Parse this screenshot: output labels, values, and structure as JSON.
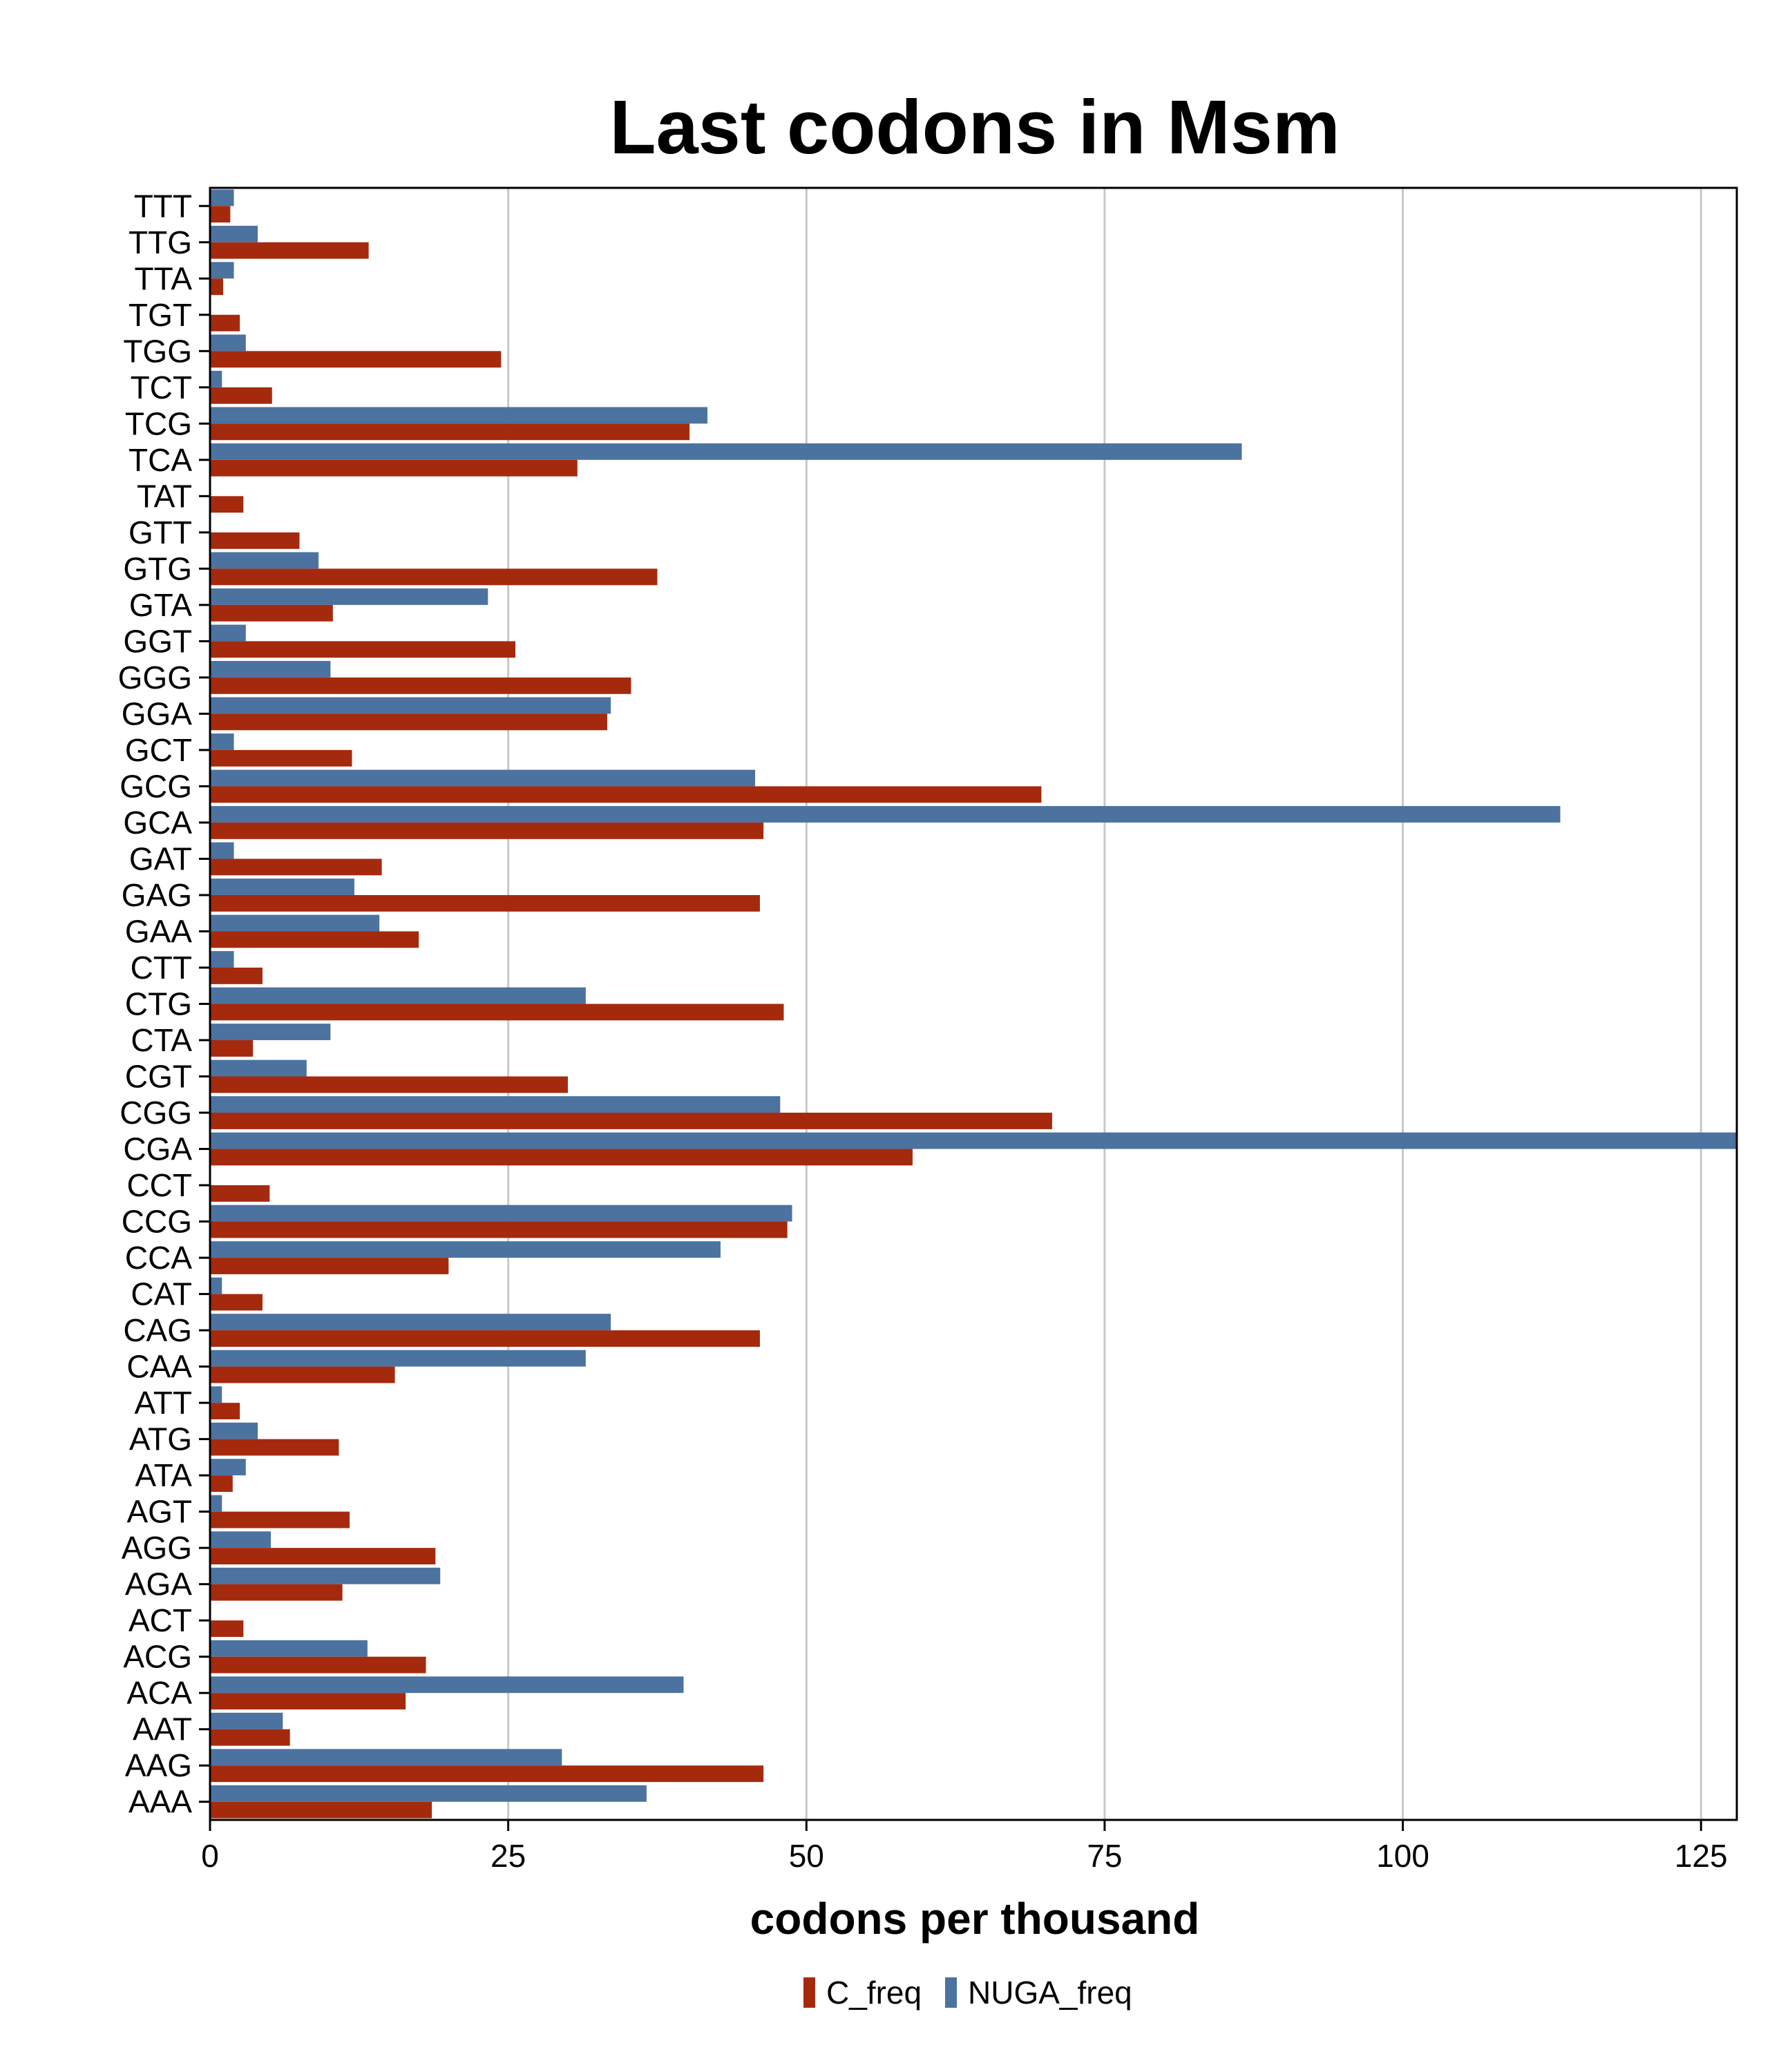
{
  "chart_data": {
    "type": "bar",
    "orientation": "horizontal",
    "title": "Last codons in Msm",
    "xlabel": "codons per thousand",
    "ylabel": "",
    "xlim": [
      0,
      128
    ],
    "xticks": [
      "0",
      "25",
      "50",
      "75",
      "100",
      "125"
    ],
    "xtick_values": [
      0,
      25,
      50,
      75,
      100,
      125
    ],
    "grid": "vertical",
    "legend_position": "bottom",
    "categories": [
      "TTT",
      "TTG",
      "TTA",
      "TGT",
      "TGG",
      "TCT",
      "TCG",
      "TCA",
      "TAT",
      "GTT",
      "GTG",
      "GTA",
      "GGT",
      "GGG",
      "GGA",
      "GCT",
      "GCG",
      "GCA",
      "GAT",
      "GAG",
      "GAA",
      "CTT",
      "CTG",
      "CTA",
      "CGT",
      "CGG",
      "CGA",
      "CCT",
      "CCG",
      "CCA",
      "CAT",
      "CAG",
      "CAA",
      "ATT",
      "ATG",
      "ATA",
      "AGT",
      "AGG",
      "AGA",
      "ACT",
      "ACG",
      "ACA",
      "AAT",
      "AAG",
      "AAA"
    ],
    "series": [
      {
        "name": "NUGA_freq",
        "color": "#4c72a0",
        "values": [
          2,
          4,
          2,
          0,
          3,
          1,
          41.7,
          86.5,
          0,
          0,
          9.1,
          23.3,
          3,
          10.1,
          33.6,
          2,
          45.7,
          113.2,
          2,
          12.1,
          14.2,
          2,
          31.5,
          10.1,
          8.1,
          47.8,
          128.5,
          0,
          48.8,
          42.8,
          1,
          33.6,
          31.5,
          1,
          4,
          3,
          1,
          5.1,
          19.3,
          0,
          13.2,
          39.7,
          6.1,
          29.5,
          36.6
        ]
      },
      {
        "name": "C_freq",
        "color": "#a52a0d",
        "values": [
          1.7,
          13.3,
          1.1,
          2.5,
          24.4,
          5.2,
          40.2,
          30.8,
          2.8,
          7.5,
          37.5,
          10.3,
          25.6,
          35.3,
          33.3,
          11.9,
          69.7,
          46.4,
          14.4,
          46.1,
          17.5,
          4.4,
          48.1,
          3.6,
          30,
          70.6,
          58.9,
          5,
          48.4,
          20,
          4.4,
          46.1,
          15.5,
          2.5,
          10.8,
          1.9,
          11.7,
          18.9,
          11.1,
          2.8,
          18.1,
          16.4,
          6.7,
          46.4,
          18.6
        ]
      }
    ],
    "legend": [
      {
        "name": "C_freq",
        "color": "#a52a0d"
      },
      {
        "name": "NUGA_freq",
        "color": "#4c72a0"
      }
    ]
  }
}
